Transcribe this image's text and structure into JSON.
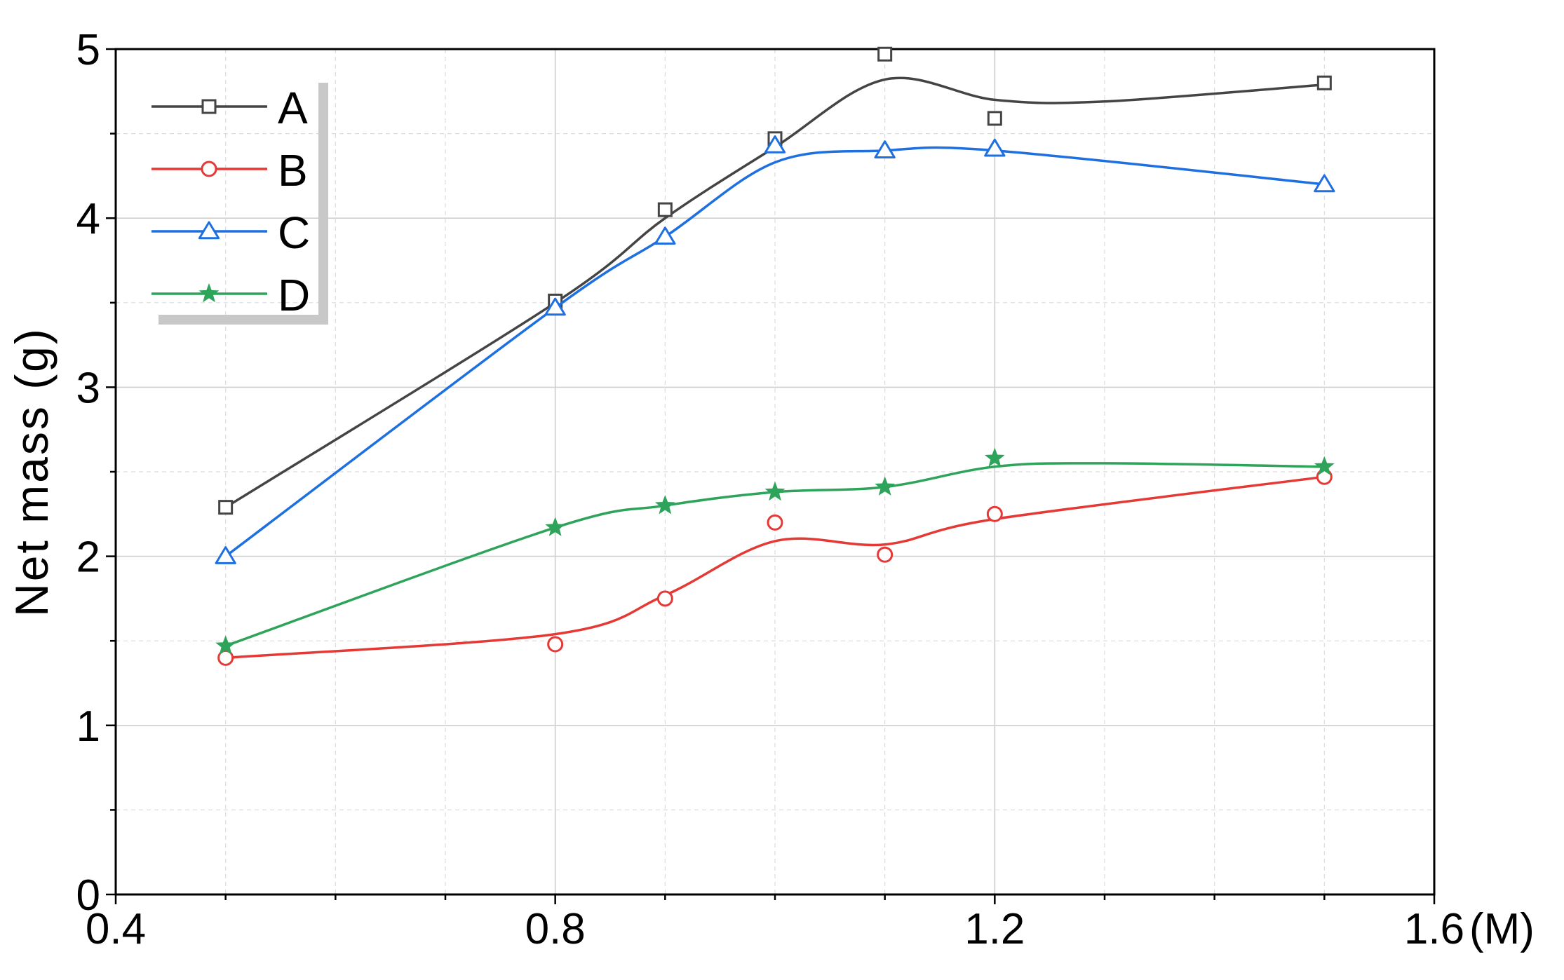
{
  "chart_data": {
    "type": "line",
    "title": "",
    "xlabel": "",
    "x_unit": "(M)",
    "ylabel": "Net mass (g)",
    "xlim": [
      0.4,
      1.6
    ],
    "ylim": [
      0,
      5
    ],
    "x_ticks": [
      "0.4",
      "0.8",
      "1.2",
      "1.6"
    ],
    "y_ticks": [
      "0",
      "1",
      "2",
      "3",
      "4",
      "5"
    ],
    "grid": true,
    "legend_position": "top-left",
    "x": [
      0.5,
      0.8,
      0.9,
      1.0,
      1.1,
      1.2,
      1.5
    ],
    "series": [
      {
        "name": "A",
        "color": "#444444",
        "marker": "square",
        "values": [
          2.29,
          3.51,
          4.05,
          4.47,
          4.97,
          4.59,
          4.8
        ],
        "curve": [
          [
            0.5,
            2.29
          ],
          [
            0.8,
            3.5
          ],
          [
            0.9,
            4.0
          ],
          [
            1.0,
            4.42
          ],
          [
            1.1,
            4.82
          ],
          [
            1.2,
            4.7
          ],
          [
            1.3,
            4.69
          ],
          [
            1.5,
            4.79
          ]
        ]
      },
      {
        "name": "B",
        "color": "#e53935",
        "marker": "circle",
        "values": [
          1.4,
          1.48,
          1.75,
          2.2,
          2.01,
          2.25,
          2.47
        ],
        "curve": [
          [
            0.5,
            1.4
          ],
          [
            0.8,
            1.54
          ],
          [
            0.9,
            1.77
          ],
          [
            1.0,
            2.09
          ],
          [
            1.1,
            2.07
          ],
          [
            1.2,
            2.22
          ],
          [
            1.5,
            2.47
          ]
        ]
      },
      {
        "name": "C",
        "color": "#1e6fe0",
        "marker": "triangle",
        "values": [
          2.0,
          3.47,
          3.89,
          4.43,
          4.4,
          4.41,
          4.2
        ],
        "curve": [
          [
            0.5,
            2.0
          ],
          [
            0.8,
            3.47
          ],
          [
            0.9,
            3.89
          ],
          [
            1.0,
            4.33
          ],
          [
            1.1,
            4.4
          ],
          [
            1.2,
            4.4
          ],
          [
            1.5,
            4.2
          ]
        ]
      },
      {
        "name": "D",
        "color": "#2ea35a",
        "marker": "star",
        "values": [
          1.47,
          2.17,
          2.3,
          2.38,
          2.41,
          2.58,
          2.53
        ],
        "curve": [
          [
            0.5,
            1.47
          ],
          [
            0.8,
            2.17
          ],
          [
            0.9,
            2.3
          ],
          [
            1.0,
            2.38
          ],
          [
            1.1,
            2.41
          ],
          [
            1.2,
            2.53
          ],
          [
            1.3,
            2.55
          ],
          [
            1.5,
            2.53
          ]
        ]
      }
    ]
  }
}
